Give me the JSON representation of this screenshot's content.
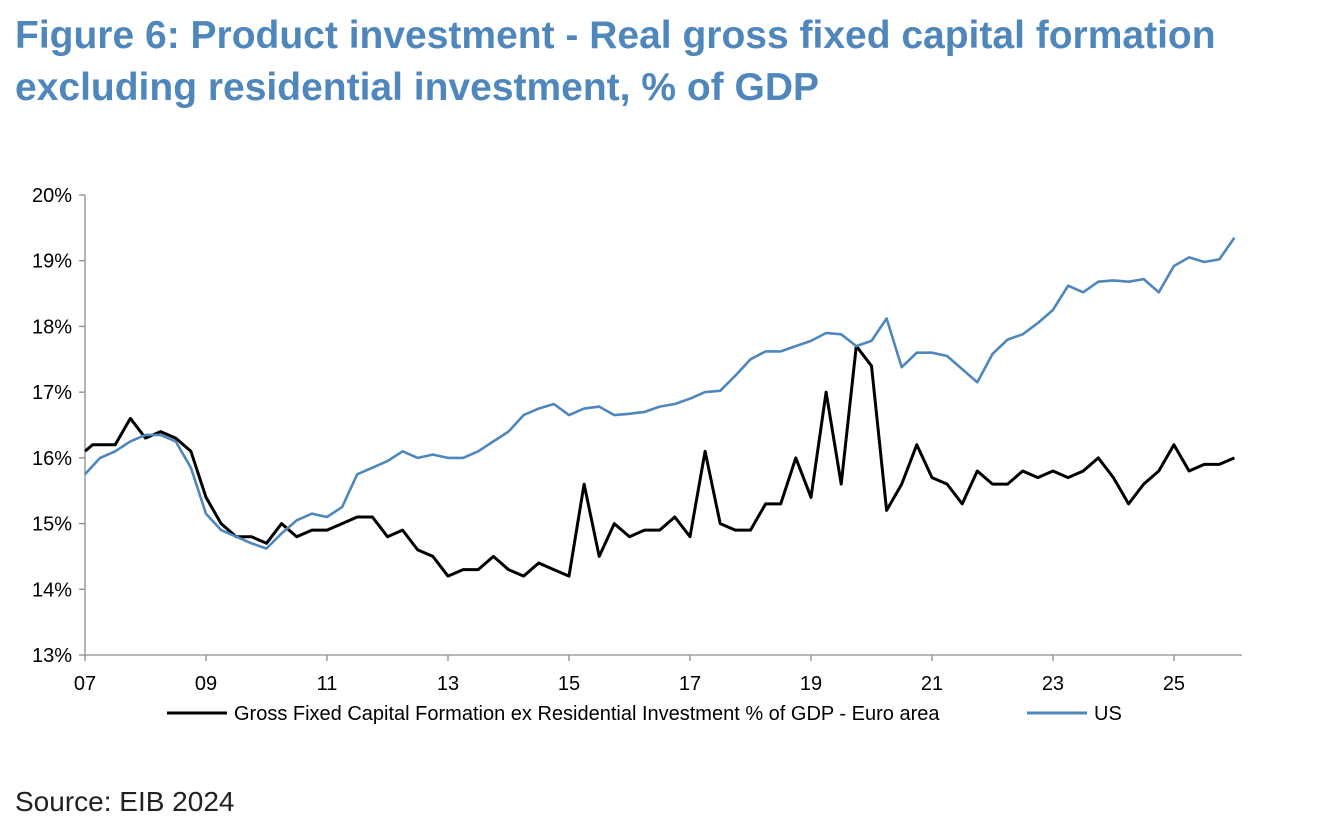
{
  "title": {
    "line1": "Figure 6: Product investment - Real gross fixed capital formation",
    "line2": "excluding residential investment, % of GDP"
  },
  "source": "Source: EIB 2024",
  "chart_data": {
    "type": "line",
    "title": "Figure 6: Product investment - Real gross fixed capital formation excluding residential investment, % of GDP",
    "xlabel": "",
    "ylabel": "",
    "x_tick_labels": [
      "07",
      "09",
      "11",
      "13",
      "15",
      "17",
      "19",
      "21",
      "23",
      "25"
    ],
    "x_tick_years": [
      2007,
      2009,
      2011,
      2013,
      2015,
      2017,
      2019,
      2021,
      2023,
      2025
    ],
    "x_range": [
      2007,
      2026.125
    ],
    "y_tick_labels": [
      "20%",
      "19%",
      "18%",
      "17%",
      "16%",
      "15%",
      "14%",
      "13%"
    ],
    "y_ticks": [
      20,
      19,
      18,
      17,
      16,
      15,
      14,
      13
    ],
    "ylim": [
      13,
      20
    ],
    "grid": false,
    "legend_position": "bottom",
    "series": [
      {
        "name": "Gross Fixed Capital Formation ex Residential Investment % of GDP - Euro area",
        "color": "#000000",
        "x": [
          2007.0,
          2007.125,
          2007.5,
          2007.75,
          2008.0,
          2008.25,
          2008.5,
          2008.75,
          2009.0,
          2009.25,
          2009.5,
          2009.75,
          2010.0,
          2010.25,
          2010.5,
          2010.75,
          2011.0,
          2011.25,
          2011.5,
          2011.75,
          2012.0,
          2012.25,
          2012.5,
          2012.75,
          2013.0,
          2013.25,
          2013.5,
          2013.75,
          2014.0,
          2014.25,
          2014.5,
          2014.75,
          2015.0,
          2015.25,
          2015.5,
          2015.75,
          2016.0,
          2016.25,
          2016.5,
          2016.75,
          2017.0,
          2017.25,
          2017.5,
          2017.75,
          2018.0,
          2018.25,
          2018.5,
          2018.75,
          2019.0,
          2019.25,
          2019.5,
          2019.75,
          2020.0,
          2020.25,
          2020.5,
          2020.75,
          2021.0,
          2021.25,
          2021.5,
          2021.75,
          2022.0,
          2022.25,
          2022.5,
          2022.75,
          2023.0,
          2023.25,
          2023.5,
          2023.75,
          2024.0,
          2024.25,
          2024.5,
          2024.75,
          2025.0,
          2025.25,
          2025.5,
          2025.75,
          2026.0
        ],
        "y": [
          16.1,
          16.2,
          16.2,
          16.6,
          16.3,
          16.4,
          16.3,
          16.1,
          15.4,
          15.0,
          14.8,
          14.8,
          14.7,
          15.0,
          14.8,
          14.9,
          14.9,
          15.0,
          15.1,
          15.1,
          14.8,
          14.9,
          14.6,
          14.5,
          14.2,
          14.3,
          14.3,
          14.5,
          14.3,
          14.2,
          14.4,
          14.3,
          14.2,
          15.6,
          14.5,
          15.0,
          14.8,
          14.9,
          14.9,
          15.1,
          14.8,
          16.1,
          15.0,
          14.9,
          14.9,
          15.3,
          15.3,
          16.0,
          15.4,
          17.0,
          15.6,
          17.7,
          17.4,
          15.2,
          15.6,
          16.2,
          15.7,
          15.6,
          15.3,
          15.8,
          15.6,
          15.6,
          15.8,
          15.7,
          15.8,
          15.7,
          15.8,
          16.0,
          15.7,
          15.3,
          15.6,
          15.8,
          16.2,
          15.8,
          15.9,
          15.9,
          16.0
        ]
      },
      {
        "name": "US",
        "color": "#4f87bd",
        "x": [
          2007.0,
          2007.25,
          2007.5,
          2007.75,
          2008.0,
          2008.25,
          2008.5,
          2008.75,
          2009.0,
          2009.25,
          2009.5,
          2009.75,
          2010.0,
          2010.25,
          2010.5,
          2010.75,
          2011.0,
          2011.25,
          2011.5,
          2011.75,
          2012.0,
          2012.25,
          2012.5,
          2012.75,
          2013.0,
          2013.25,
          2013.5,
          2013.75,
          2014.0,
          2014.25,
          2014.5,
          2014.75,
          2015.0,
          2015.25,
          2015.5,
          2015.75,
          2016.0,
          2016.25,
          2016.5,
          2016.75,
          2017.0,
          2017.25,
          2017.5,
          2017.75,
          2018.0,
          2018.25,
          2018.5,
          2018.75,
          2019.0,
          2019.25,
          2019.5,
          2019.75,
          2020.0,
          2020.25,
          2020.5,
          2020.75,
          2021.0,
          2021.25,
          2021.5,
          2021.75,
          2022.0,
          2022.25,
          2022.5,
          2022.75,
          2023.0,
          2023.25,
          2023.5,
          2023.75,
          2024.0,
          2024.25,
          2024.5,
          2024.75,
          2025.0,
          2025.25,
          2025.5,
          2025.75,
          2026.0
        ],
        "y": [
          15.75,
          16.0,
          16.1,
          16.25,
          16.35,
          16.35,
          16.25,
          15.85,
          15.15,
          14.9,
          14.8,
          14.7,
          14.62,
          14.85,
          15.05,
          15.15,
          15.1,
          15.25,
          15.75,
          15.85,
          15.95,
          16.1,
          16.0,
          16.05,
          16.0,
          16.0,
          16.1,
          16.25,
          16.4,
          16.65,
          16.75,
          16.82,
          16.65,
          16.75,
          16.78,
          16.65,
          16.67,
          16.7,
          16.78,
          16.82,
          16.9,
          17.0,
          17.02,
          17.25,
          17.5,
          17.62,
          17.62,
          17.7,
          17.78,
          17.9,
          17.88,
          17.7,
          17.78,
          18.12,
          17.38,
          17.6,
          17.6,
          17.55,
          17.35,
          17.15,
          17.58,
          17.8,
          17.88,
          18.05,
          18.25,
          18.62,
          18.52,
          18.68,
          18.7,
          18.68,
          18.72,
          18.52,
          18.92,
          19.05,
          18.98,
          19.02,
          19.35
        ]
      }
    ]
  }
}
